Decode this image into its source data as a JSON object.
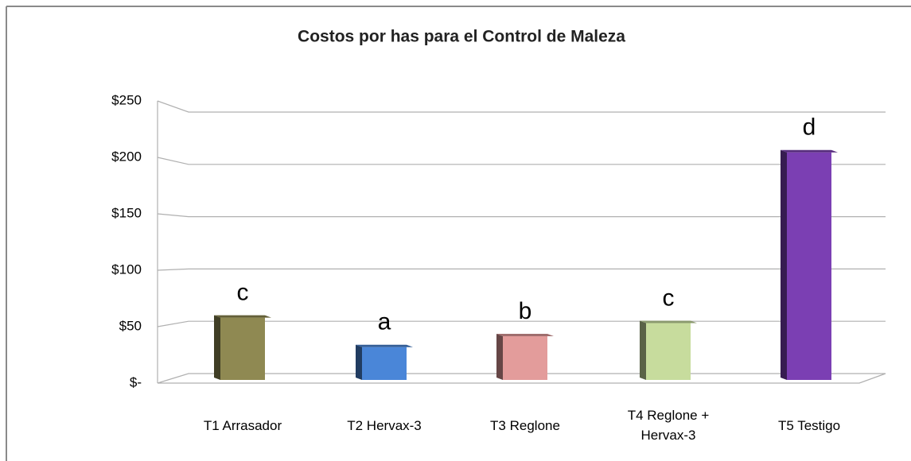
{
  "chart_data": {
    "type": "bar",
    "title": "Costos por has para el Control de Maleza",
    "categories": [
      "T1 Arrasador",
      "T2 Hervax-3",
      "T3 Reglone",
      "T4 Reglone + Hervax-3",
      "T5 Testigo"
    ],
    "values": [
      57,
      30,
      40,
      52,
      208
    ],
    "annotations": [
      "c",
      "a",
      "b",
      "c",
      "d"
    ],
    "colors": [
      "#8f8952",
      "#4a86d8",
      "#e39c9b",
      "#c7dc9d",
      "#7b3fb3"
    ],
    "ylim": [
      0,
      250
    ],
    "yticks": [
      {
        "value": 0,
        "label": "$-"
      },
      {
        "value": 50,
        "label": "$50"
      },
      {
        "value": 100,
        "label": "$100"
      },
      {
        "value": 150,
        "label": "$150"
      },
      {
        "value": 200,
        "label": "$200"
      },
      {
        "value": 250,
        "label": "$250"
      }
    ],
    "grid": true
  }
}
